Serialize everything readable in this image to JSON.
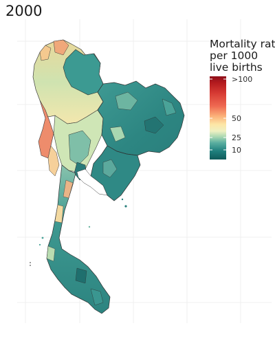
{
  "title": "2000",
  "legend": {
    "title_lines": [
      "Mortality rate",
      "per 1000",
      "live births"
    ],
    "ticks": [
      {
        "value": 100,
        "label": ">100"
      },
      {
        "value": 50,
        "label": "50"
      },
      {
        "value": 25,
        "label": "25"
      },
      {
        "value": 10,
        "label": "10"
      }
    ],
    "colors": [
      "#0f5a5a",
      "#1f7f7d",
      "#5aaea0",
      "#a7d6b1",
      "#eef0c2",
      "#fde7a7",
      "#fbb27a",
      "#ef6a52",
      "#d63a33",
      "#b41b1f",
      "#8f0f1a"
    ]
  }
}
